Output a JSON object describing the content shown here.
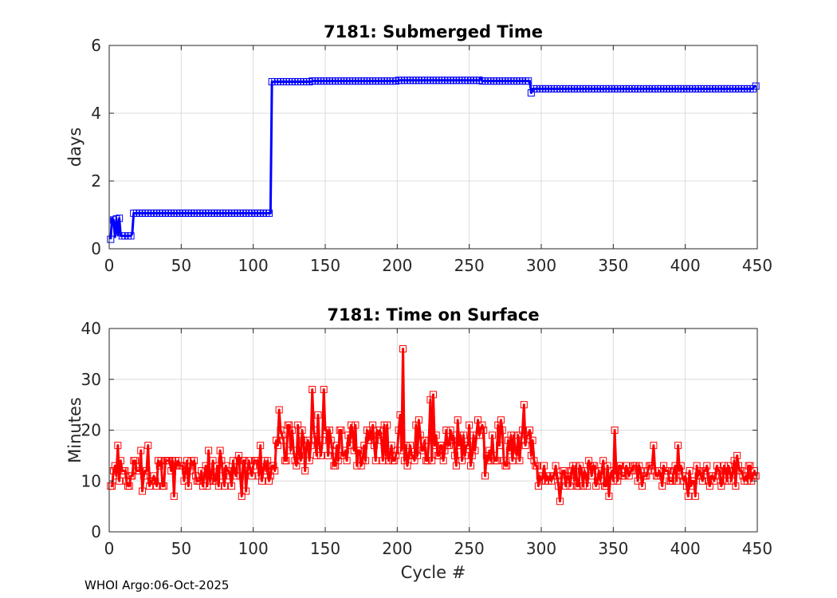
{
  "footer": "WHOI Argo:06-Oct-2025",
  "colors": {
    "series_top": "#0000ff",
    "series_bottom": "#ff0000",
    "grid": "#dcdcdc",
    "axis": "#262626"
  },
  "chart_data": [
    {
      "type": "line",
      "title": "7181: Submerged Time",
      "xlabel": "",
      "ylabel": "days",
      "xlim": [
        0,
        450
      ],
      "ylim": [
        0,
        6
      ],
      "xticks": [
        0,
        50,
        100,
        150,
        200,
        250,
        300,
        350,
        400,
        450
      ],
      "yticks": [
        0,
        2,
        4,
        6
      ],
      "grid": true,
      "marker": "square",
      "series": [
        {
          "name": "Submerged Time",
          "segments": [
            {
              "from": 1,
              "to": 1,
              "value": 0.28
            },
            {
              "from": 2,
              "to": 2,
              "value": 0.9
            },
            {
              "from": 3,
              "to": 3,
              "value": 0.85
            },
            {
              "from": 4,
              "to": 4,
              "value": 0.35
            },
            {
              "from": 5,
              "to": 5,
              "value": 0.88
            },
            {
              "from": 6,
              "to": 6,
              "value": 0.4
            },
            {
              "from": 7,
              "to": 7,
              "value": 0.9
            },
            {
              "from": 8,
              "to": 15,
              "value": 0.38
            },
            {
              "from": 16,
              "to": 16,
              "value": 0.45
            },
            {
              "from": 17,
              "to": 112,
              "value": 1.05
            },
            {
              "from": 113,
              "to": 140,
              "value": 4.93
            },
            {
              "from": 141,
              "to": 200,
              "value": 4.95
            },
            {
              "from": 201,
              "to": 257,
              "value": 4.97
            },
            {
              "from": 258,
              "to": 258,
              "value": 5.05
            },
            {
              "from": 259,
              "to": 292,
              "value": 4.95
            },
            {
              "from": 293,
              "to": 293,
              "value": 4.6
            },
            {
              "from": 294,
              "to": 447,
              "value": 4.72
            },
            {
              "from": 448,
              "to": 449,
              "value": 4.8
            }
          ]
        }
      ]
    },
    {
      "type": "line",
      "title": "7181: Time on Surface",
      "xlabel": "Cycle #",
      "ylabel": "Minutes",
      "xlim": [
        0,
        450
      ],
      "ylim": [
        0,
        40
      ],
      "xticks": [
        0,
        50,
        100,
        150,
        200,
        250,
        300,
        350,
        400,
        450
      ],
      "yticks": [
        0,
        10,
        20,
        30,
        40
      ],
      "grid": true,
      "marker": "square",
      "series": [
        {
          "name": "Time on Surface",
          "base_levels": [
            {
              "from": 1,
              "to": 115,
              "mean": 11.5,
              "spread": 3
            },
            {
              "from": 116,
              "to": 295,
              "mean": 17,
              "spread": 4
            },
            {
              "from": 296,
              "to": 449,
              "mean": 11,
              "spread": 2.5
            }
          ],
          "peaks": [
            {
              "x": 1,
              "y": 9
            },
            {
              "x": 6,
              "y": 17
            },
            {
              "x": 12,
              "y": 10
            },
            {
              "x": 18,
              "y": 14
            },
            {
              "x": 22,
              "y": 16
            },
            {
              "x": 23,
              "y": 8
            },
            {
              "x": 27,
              "y": 17
            },
            {
              "x": 28,
              "y": 9
            },
            {
              "x": 44,
              "y": 14
            },
            {
              "x": 45,
              "y": 7
            },
            {
              "x": 50,
              "y": 13
            },
            {
              "x": 55,
              "y": 9
            },
            {
              "x": 69,
              "y": 16
            },
            {
              "x": 77,
              "y": 16
            },
            {
              "x": 84,
              "y": 11
            },
            {
              "x": 90,
              "y": 15
            },
            {
              "x": 92,
              "y": 7
            },
            {
              "x": 95,
              "y": 8
            },
            {
              "x": 105,
              "y": 17
            },
            {
              "x": 118,
              "y": 24
            },
            {
              "x": 120,
              "y": 19
            },
            {
              "x": 126,
              "y": 16
            },
            {
              "x": 131,
              "y": 21
            },
            {
              "x": 136,
              "y": 12
            },
            {
              "x": 141,
              "y": 28
            },
            {
              "x": 145,
              "y": 23
            },
            {
              "x": 149,
              "y": 28
            },
            {
              "x": 152,
              "y": 15
            },
            {
              "x": 160,
              "y": 20
            },
            {
              "x": 165,
              "y": 14
            },
            {
              "x": 172,
              "y": 13
            },
            {
              "x": 180,
              "y": 18
            },
            {
              "x": 190,
              "y": 14
            },
            {
              "x": 193,
              "y": 21
            },
            {
              "x": 200,
              "y": 16
            },
            {
              "x": 202,
              "y": 23
            },
            {
              "x": 204,
              "y": 36
            },
            {
              "x": 206,
              "y": 17
            },
            {
              "x": 215,
              "y": 22
            },
            {
              "x": 220,
              "y": 14
            },
            {
              "x": 223,
              "y": 26
            },
            {
              "x": 225,
              "y": 27
            },
            {
              "x": 229,
              "y": 15
            },
            {
              "x": 237,
              "y": 20
            },
            {
              "x": 242,
              "y": 22
            },
            {
              "x": 249,
              "y": 17
            },
            {
              "x": 256,
              "y": 22
            },
            {
              "x": 261,
              "y": 11
            },
            {
              "x": 266,
              "y": 19
            },
            {
              "x": 272,
              "y": 22
            },
            {
              "x": 278,
              "y": 16
            },
            {
              "x": 284,
              "y": 19
            },
            {
              "x": 288,
              "y": 25
            },
            {
              "x": 292,
              "y": 20
            },
            {
              "x": 293,
              "y": 15
            },
            {
              "x": 300,
              "y": 10
            },
            {
              "x": 307,
              "y": 10
            },
            {
              "x": 310,
              "y": 13
            },
            {
              "x": 313,
              "y": 6
            },
            {
              "x": 318,
              "y": 11
            },
            {
              "x": 328,
              "y": 12
            },
            {
              "x": 333,
              "y": 14
            },
            {
              "x": 340,
              "y": 12
            },
            {
              "x": 343,
              "y": 14
            },
            {
              "x": 347,
              "y": 7
            },
            {
              "x": 351,
              "y": 20
            },
            {
              "x": 354,
              "y": 13
            },
            {
              "x": 358,
              "y": 11
            },
            {
              "x": 368,
              "y": 13
            },
            {
              "x": 378,
              "y": 17
            },
            {
              "x": 383,
              "y": 11
            },
            {
              "x": 388,
              "y": 12
            },
            {
              "x": 395,
              "y": 17
            },
            {
              "x": 400,
              "y": 11
            },
            {
              "x": 402,
              "y": 7
            },
            {
              "x": 407,
              "y": 7
            },
            {
              "x": 412,
              "y": 10
            },
            {
              "x": 420,
              "y": 10
            },
            {
              "x": 428,
              "y": 12
            },
            {
              "x": 434,
              "y": 14
            },
            {
              "x": 436,
              "y": 15
            },
            {
              "x": 440,
              "y": 11
            },
            {
              "x": 448,
              "y": 12
            },
            {
              "x": 449,
              "y": 11
            }
          ]
        }
      ]
    }
  ]
}
